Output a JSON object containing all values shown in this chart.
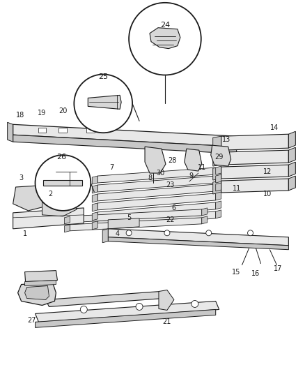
{
  "bg": "#ffffff",
  "dark": "#1a1a1a",
  "gray1": "#c8c8c8",
  "gray2": "#d8d8d8",
  "gray3": "#e8e8e8",
  "fig_w": 4.38,
  "fig_h": 5.33,
  "dpi": 100
}
